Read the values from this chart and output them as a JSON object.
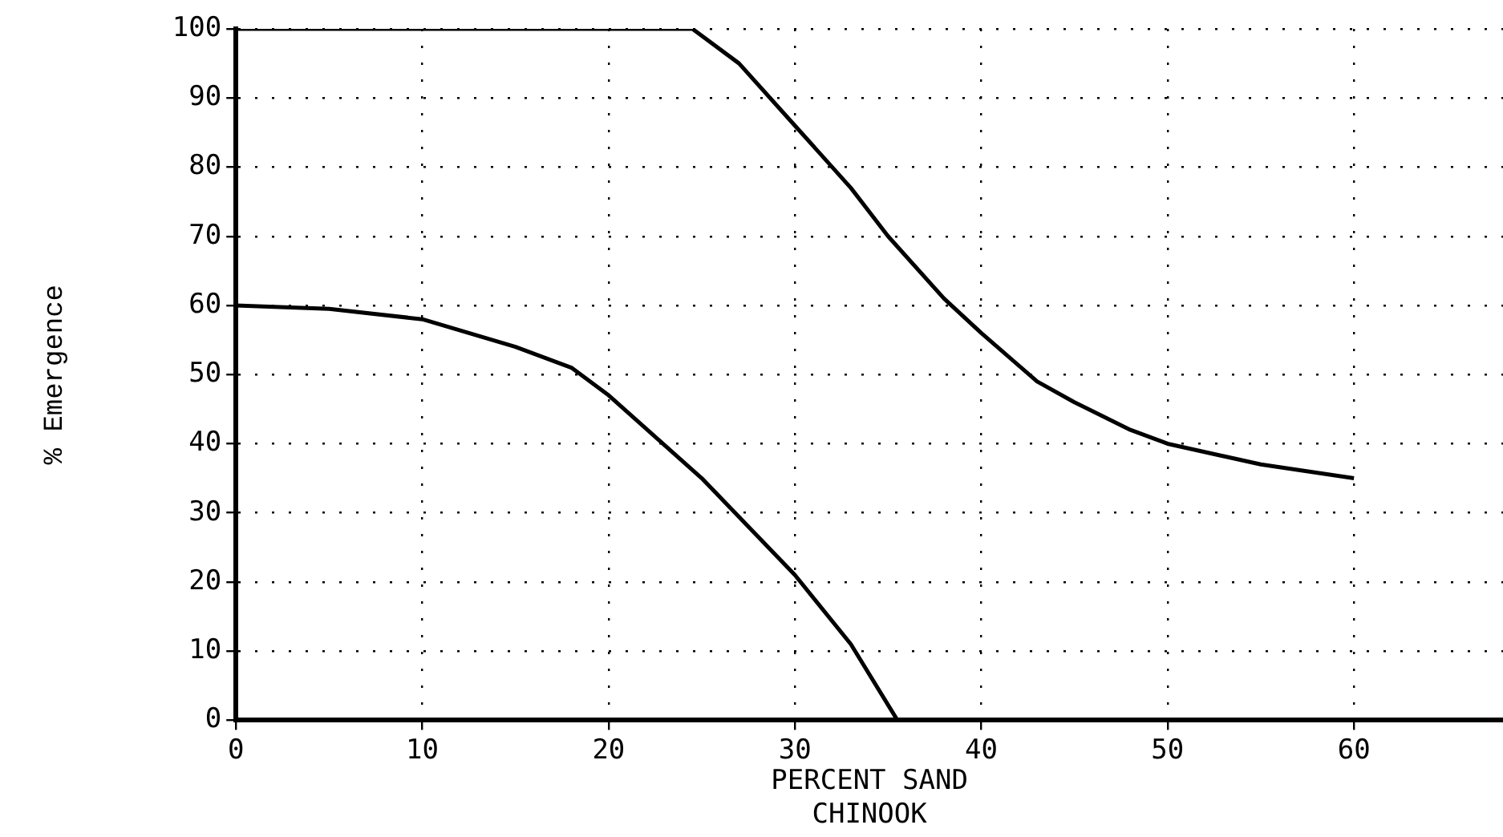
{
  "chart_data": {
    "type": "line",
    "xlabel": "PERCENT SAND",
    "ylabel": "% Emergence",
    "annotations": [
      "CHINOOK"
    ],
    "xlim": [
      0,
      68
    ],
    "xticks": [
      0,
      10,
      20,
      30,
      40,
      50,
      60
    ],
    "ylim": [
      0,
      100
    ],
    "yticks": [
      0,
      10,
      20,
      30,
      40,
      50,
      60,
      70,
      80,
      90,
      100
    ],
    "grid": true,
    "legend": false,
    "marker": "none",
    "line_style": "solid",
    "series": [
      {
        "color": "#000000",
        "x": [
          0,
          5,
          10,
          15,
          18,
          20,
          25,
          30,
          33,
          35.5
        ],
        "values": [
          60,
          59.5,
          58,
          54,
          51,
          47,
          35,
          21,
          11,
          0
        ]
      },
      {
        "color": "#000000",
        "x": [
          0,
          24.5,
          27,
          30,
          33,
          35,
          38,
          40,
          43,
          45,
          48,
          50,
          55,
          60
        ],
        "values": [
          100,
          100,
          95,
          86,
          77,
          70,
          61,
          56,
          49,
          46,
          42,
          40,
          37,
          35
        ]
      }
    ]
  }
}
